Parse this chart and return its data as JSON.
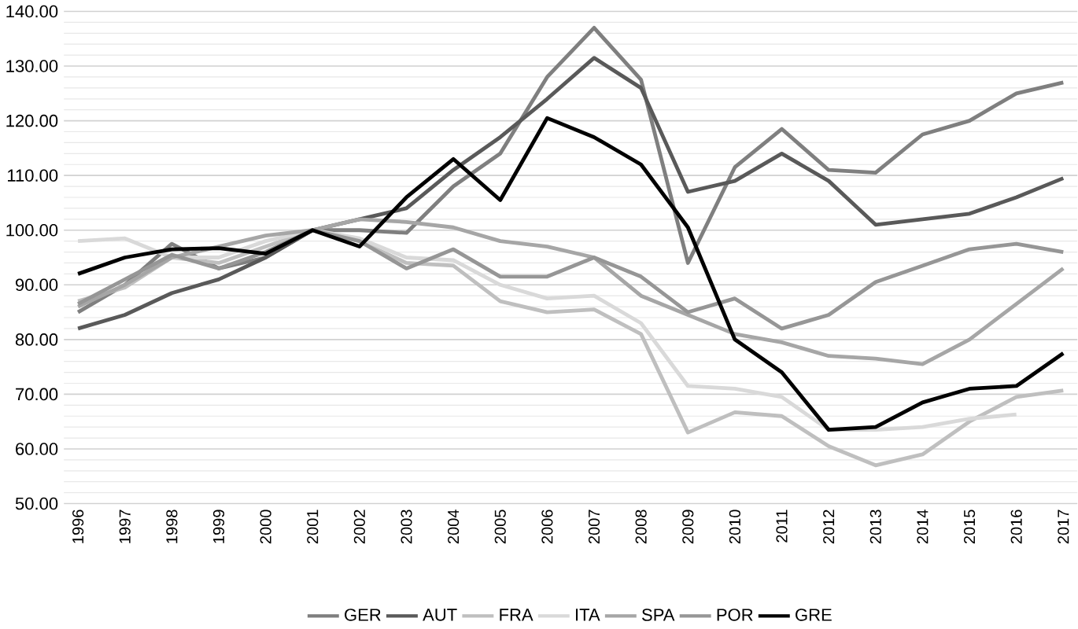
{
  "chart_data": {
    "type": "line",
    "categories": [
      "1996",
      "1997",
      "1998",
      "1999",
      "2000",
      "2001",
      "2002",
      "2003",
      "2004",
      "2005",
      "2006",
      "2007",
      "2008",
      "2009",
      "2010",
      "2011",
      "2012",
      "2013",
      "2014",
      "2015",
      "2016",
      "2017"
    ],
    "ylim": [
      50,
      140
    ],
    "yticks": [
      {
        "value": 50,
        "label": "50.00"
      },
      {
        "value": 60,
        "label": "60.00"
      },
      {
        "value": 70,
        "label": "70.00"
      },
      {
        "value": 80,
        "label": "80.00"
      },
      {
        "value": 90,
        "label": "90.00"
      },
      {
        "value": 100,
        "label": "100.00"
      },
      {
        "value": 110,
        "label": "110.00"
      },
      {
        "value": 120,
        "label": "120.00"
      },
      {
        "value": 130,
        "label": "130.00"
      },
      {
        "value": 140,
        "label": "140.00"
      }
    ],
    "grid": "y",
    "legend": "bottom",
    "marker": "none",
    "line_style": "solid",
    "series": [
      {
        "name": "GER",
        "color": "#7f7f7f",
        "values": [
          85,
          90,
          97.5,
          93,
          95,
          100,
          100,
          99.5,
          108,
          114,
          128,
          137,
          127.5,
          94,
          111.5,
          118.5,
          111,
          110.5,
          117.5,
          120,
          125,
          127
        ]
      },
      {
        "name": "AUT",
        "color": "#595959",
        "values": [
          82,
          84.5,
          88.5,
          91,
          95,
          100,
          102,
          104,
          111,
          117,
          124,
          131.5,
          126,
          107,
          109,
          114,
          109,
          101,
          102,
          103,
          106,
          109.5
        ]
      },
      {
        "name": "FRA",
        "color": "#bfbfbf",
        "values": [
          87,
          89.5,
          95,
          94,
          97,
          100,
          98,
          94,
          93.5,
          87,
          85,
          85.5,
          81,
          63,
          66.7,
          66,
          60.5,
          57,
          59,
          65,
          69.5,
          70.7
        ]
      },
      {
        "name": "ITA",
        "color": "#d9d9d9",
        "values": [
          98,
          98.5,
          95,
          95,
          98,
          100,
          98.5,
          95,
          94.5,
          90,
          87.5,
          88,
          83,
          71.5,
          71,
          69.5,
          63.5,
          63.5,
          64,
          65.5,
          66.3,
          null
        ]
      },
      {
        "name": "SPA",
        "color": "#a6a6a6",
        "values": [
          86,
          90,
          95,
          97,
          99,
          100,
          102,
          101.5,
          100.5,
          98,
          97,
          95,
          88,
          84.5,
          81,
          79.5,
          77,
          76.5,
          75.5,
          80,
          86.5,
          93
        ]
      },
      {
        "name": "POR",
        "color": "#969696",
        "values": [
          86.5,
          91,
          95.5,
          93,
          96,
          100,
          98,
          93,
          96.5,
          91.5,
          91.5,
          95,
          91.5,
          85,
          87.5,
          82,
          84.5,
          90.5,
          93.5,
          96.5,
          97.5,
          96
        ]
      },
      {
        "name": "GRE",
        "color": "#000000",
        "values": [
          92,
          95,
          96.5,
          96.7,
          95.7,
          100,
          97,
          106,
          113,
          105.5,
          120.5,
          117,
          112,
          100.5,
          80,
          74,
          63.5,
          64,
          68.5,
          71,
          71.5,
          77.5
        ]
      }
    ]
  }
}
